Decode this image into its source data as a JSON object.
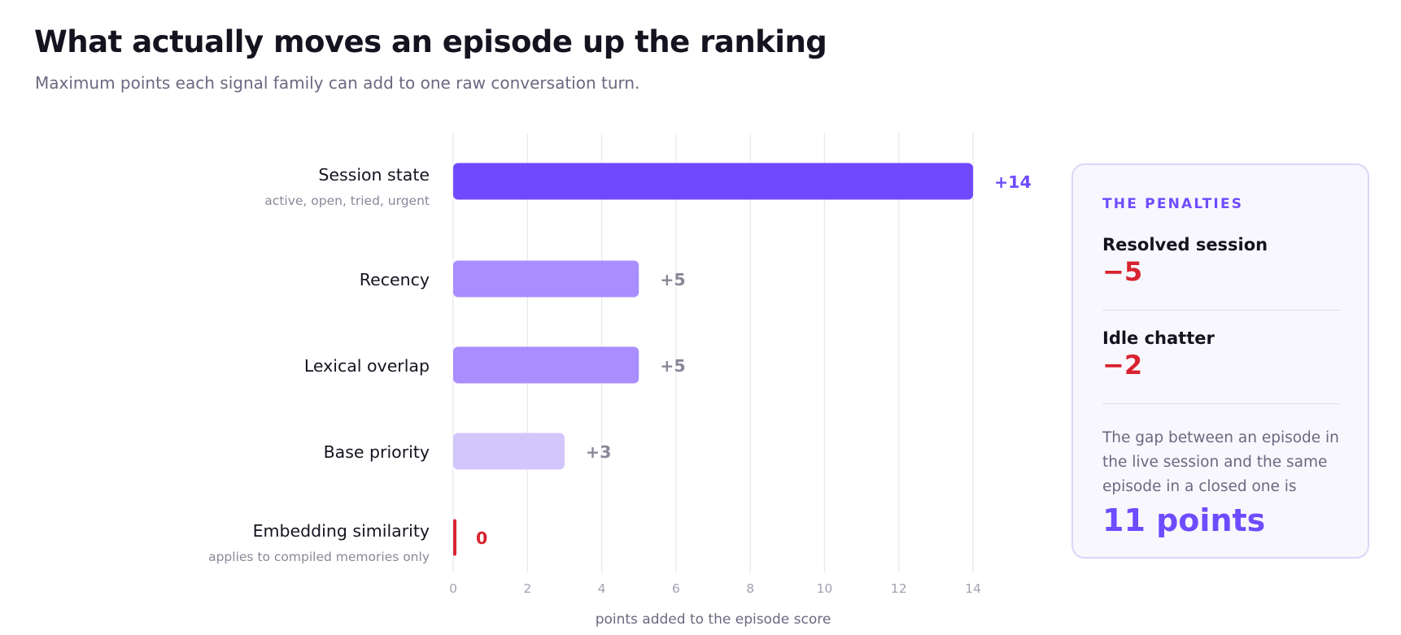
{
  "title": "What actually moves an episode up the ranking",
  "subtitle": "Maximum points each signal family can add to one raw conversation turn.",
  "colors": {
    "primary_bar": "#7049ff",
    "mid_bar": "#aa8dff",
    "light_bar": "#d3c6fb",
    "zero_bar": "#d8232f",
    "primary_label": "#6e4cff",
    "muted_label": "#8a8799",
    "grid": "#e9e8ee"
  },
  "chart_data": {
    "type": "bar",
    "orientation": "horizontal",
    "categories": [
      "Session state",
      "Recency",
      "Lexical overlap",
      "Base priority",
      "Embedding similarity"
    ],
    "category_notes": [
      "active, open, tried, urgent",
      "",
      "",
      "",
      "applies to compiled memories only"
    ],
    "values": [
      14,
      5,
      5,
      3,
      0
    ],
    "value_labels": [
      "+14",
      "+5",
      "+5",
      "+3",
      "0"
    ],
    "xlabel": "points added to the episode score",
    "xlim": [
      0,
      14
    ],
    "xticks": [
      0,
      2,
      4,
      6,
      8,
      10,
      12,
      14
    ],
    "grid": true
  },
  "panel": {
    "heading": "THE PENALTIES",
    "penalties": [
      {
        "label": "Resolved session",
        "value": "−5"
      },
      {
        "label": "Idle chatter",
        "value": "−2"
      }
    ],
    "gap_text": "The gap between an episode in the live session and the same episode in a closed one is",
    "gap_value": "11 points"
  }
}
